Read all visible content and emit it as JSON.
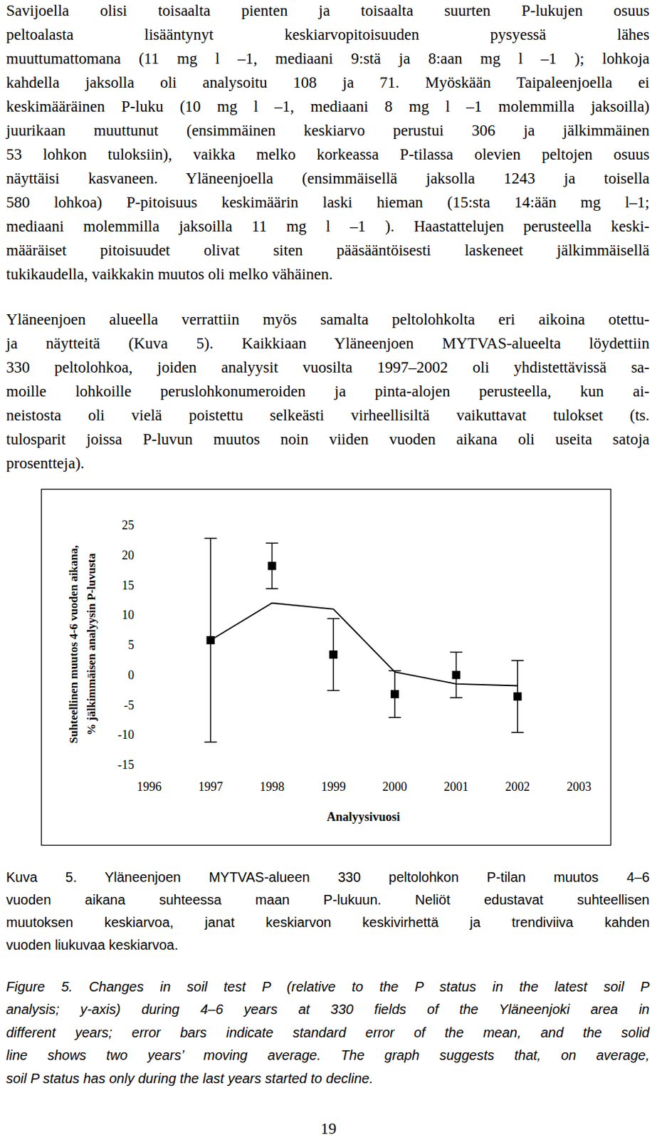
{
  "paragraphs": [
    [
      "Savijoella olisi toisaalta pienten ja toisaalta suurten P-lukujen osuus",
      "peltoalasta lisääntynyt keskiarvopitoisuuden pysyessä lähes",
      "muuttumattomana (11 mg l –1, mediaani 9:stä ja 8:aan mg l –1 ); lohkoja",
      "kahdella jaksolla oli analysoitu 108 ja 71. Myöskään Taipaleenjoella ei",
      "keskimääräinen P-luku (10 mg l –1, mediaani 8 mg l –1 molemmilla jaksoilla)",
      "juurikaan muuttunut (ensimmäinen keskiarvo perustui 306 ja jälkimmäinen",
      "53 lohkon tuloksiin), vaikka melko korkeassa P-tilassa olevien peltojen osuus",
      "näyttäisi kasvaneen. Yläneenjoella (ensimmäisellä jaksolla 1243 ja toisella",
      "580 lohkoa) P-pitoisuus keskimäärin laski hieman (15:sta 14:ään mg l–1;",
      "mediaani molemmilla jaksoilla 11 mg l –1 ). Haastattelujen perusteella keski-",
      "määräiset pitoisuudet olivat siten pääsääntöisesti laskeneet jälkimmäisellä",
      "tukikaudella, vaikkakin muutos oli melko vähäinen."
    ],
    [
      "Yläneenjoen alueella verrattiin myös samalta peltolohkolta eri aikoina otettu-",
      "ja näytteitä (Kuva 5). Kaikkiaan Yläneenjoen MYTVAS-alueelta löydettiin",
      "330 peltolohkoa, joiden analyysit vuosilta 1997–2002 oli yhdistettävissä sa-",
      "moille lohkoille peruslohkonumeroiden ja pinta-alojen perusteella, kun ai-",
      "neistosta oli vielä poistettu selkeästi virheellisiltä vaikuttavat tulokset (ts.",
      "tulosparit joissa P-luvun muutos noin viiden vuoden aikana oli useita satoja",
      "prosentteja)."
    ]
  ],
  "chart_data": {
    "type": "line",
    "x_label": "Analyysivuosi",
    "y_label": [
      "Suhteellinen muutos 4-6 vuoden aikana,",
      "% jälkimmäisen analyysin P-luvusta"
    ],
    "x": [
      1997,
      1998,
      1999,
      2000,
      2001,
      2002
    ],
    "series": [
      {
        "type": "scatter",
        "marker": "square",
        "color": "#000000",
        "values": [
          5.8,
          18.2,
          3.4,
          -3.2,
          0,
          -3.6
        ],
        "errors": [
          17,
          3.8,
          6,
          3.9,
          3.8,
          6
        ]
      },
      {
        "type": "line",
        "line_style": "solid",
        "color": "#000000",
        "values": [
          5.8,
          12,
          11,
          0.5,
          -1.5,
          -1.8
        ]
      }
    ],
    "xlim": [
      1996,
      2003
    ],
    "xticks": [
      1996,
      1997,
      1998,
      1999,
      2000,
      2001,
      2002,
      2003
    ],
    "ylim": [
      -15,
      25
    ],
    "yticks": [
      -15,
      -10,
      -5,
      0,
      5,
      10,
      15,
      20,
      25
    ],
    "grid": false
  },
  "caption_fi": [
    "Kuva 5. Yläneenjoen MYTVAS-alueen 330 peltolohkon P-tilan muutos 4–6",
    "vuoden aikana suhteessa maan P-lukuun. Neliöt edustavat suhteellisen",
    "muutoksen keskiarvoa, janat keskiarvon keskivirhettä ja trendiviiva kahden",
    "vuoden liukuvaa keskiarvoa."
  ],
  "caption_en": [
    "Figure 5. Changes in soil test P (relative to the P status in the latest soil P",
    "analysis; y-axis) during 4–6 years at 330 fields of the Yläneenjoki area in",
    "different years; error bars indicate standard error of the mean, and the solid",
    "line shows two years’ moving average. The graph suggests that, on average,",
    "soil P status has only during the last years started to decline."
  ],
  "page_number": "19"
}
